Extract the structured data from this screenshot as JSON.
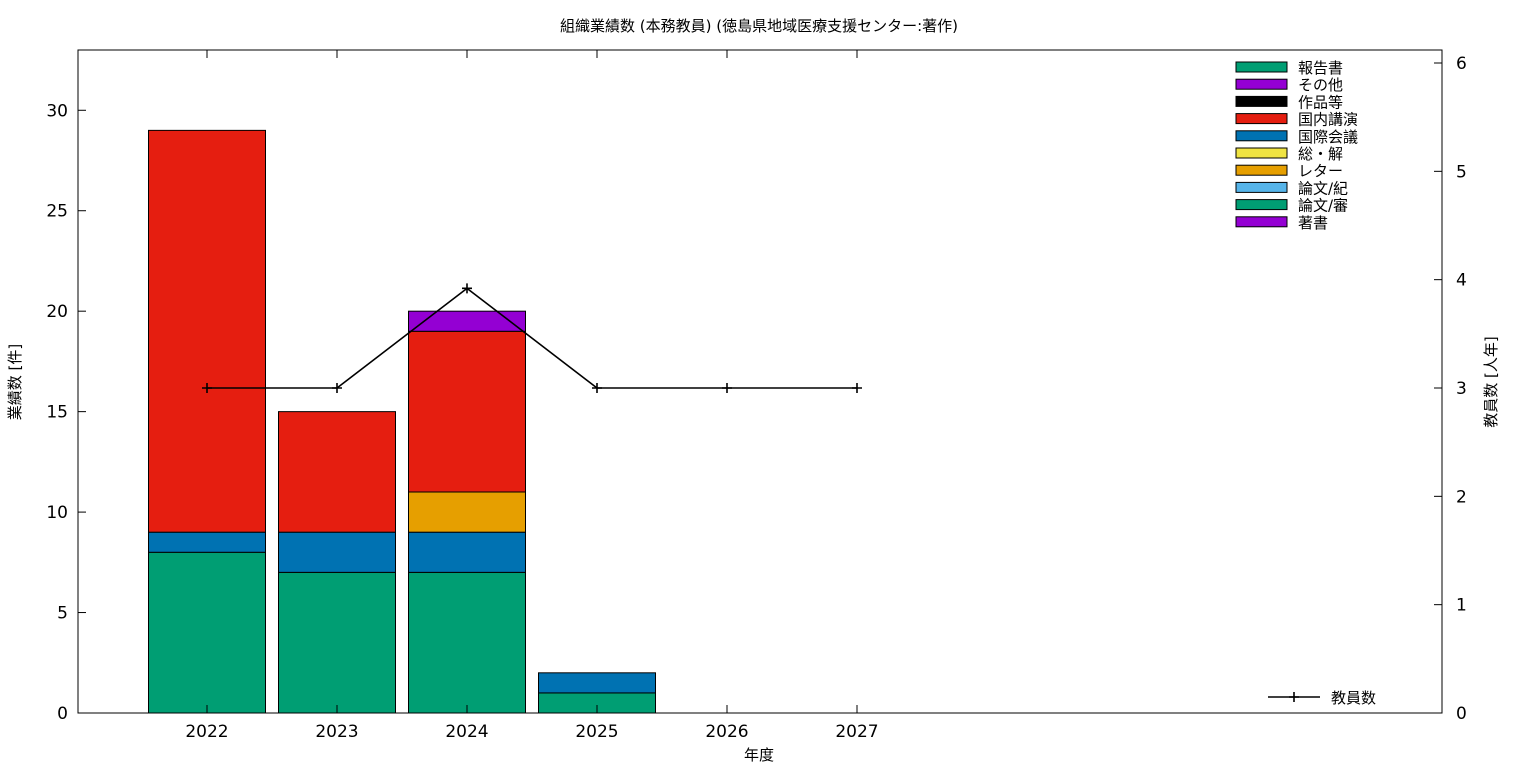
{
  "chart_data": {
    "type": "bar",
    "stacked": true,
    "title": "組織業績数 (本務教員) (徳島県地域医療支援センター:著作)",
    "xlabel": "年度",
    "ylabel": "業績数 [件]",
    "y2label": "教員数 [人年]",
    "categories": [
      "2022",
      "2023",
      "2024",
      "2025",
      "2026",
      "2027"
    ],
    "ylim": [
      0,
      33
    ],
    "yticks": [
      "0",
      "5",
      "10",
      "15",
      "20",
      "25",
      "30"
    ],
    "y2lim": [
      0,
      6.12
    ],
    "y2ticks": [
      "0",
      "1",
      "2",
      "3",
      "4",
      "5",
      "6"
    ],
    "legend_position": "top-right",
    "legend": [
      {
        "name": "報告書",
        "color": "#009e73"
      },
      {
        "name": "その他",
        "color": "#9400d3"
      },
      {
        "name": "作品等",
        "color": "#000000"
      },
      {
        "name": "国内講演",
        "color": "#e51e10"
      },
      {
        "name": "国際会議",
        "color": "#0072b2"
      },
      {
        "name": "総・解",
        "color": "#f0e442"
      },
      {
        "name": "レター",
        "color": "#e69f00"
      },
      {
        "name": "論文/紀",
        "color": "#56b4e9"
      },
      {
        "name": "論文/審",
        "color": "#009e73"
      },
      {
        "name": "著書",
        "color": "#9400d3"
      }
    ],
    "series": [
      {
        "name": "報告書",
        "color": "#009e73",
        "values": [
          8,
          7,
          7,
          1,
          0,
          0
        ]
      },
      {
        "name": "国際会議",
        "color": "#0072b2",
        "values": [
          1,
          2,
          2,
          1,
          0,
          0
        ]
      },
      {
        "name": "レター",
        "color": "#e69f00",
        "values": [
          0,
          0,
          2,
          0,
          0,
          0
        ]
      },
      {
        "name": "国内講演",
        "color": "#e51e10",
        "values": [
          20,
          6,
          8,
          0,
          0,
          0
        ]
      },
      {
        "name": "その他",
        "color": "#9400d3",
        "values": [
          0,
          0,
          1,
          0,
          0,
          0
        ]
      }
    ],
    "line_series": {
      "name": "教員数",
      "axis": "y2",
      "color": "#000000",
      "values": [
        3,
        3,
        3.92,
        3,
        3,
        3
      ]
    }
  }
}
